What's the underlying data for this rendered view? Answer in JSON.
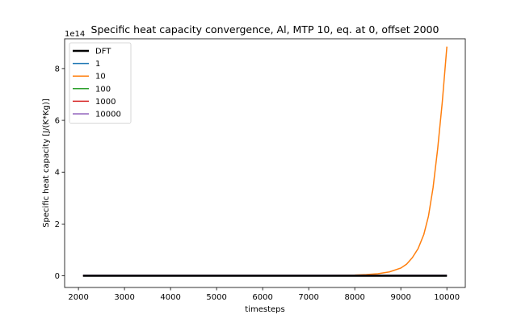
{
  "chart_data": {
    "type": "line",
    "title": "Specific heat capacity convergence, Al, MTP 10, eq. at 0, offset 2000",
    "xlabel": "timesteps",
    "ylabel": "Specific heat capacity [J/(K*Kg)]",
    "y_offset_label": "1e14",
    "xlim": [
      1700,
      10400
    ],
    "ylim": [
      -0.45,
      9.15
    ],
    "x_ticks": [
      2000,
      3000,
      4000,
      5000,
      6000,
      7000,
      8000,
      9000,
      10000
    ],
    "x_tick_labels": [
      "2000",
      "3000",
      "4000",
      "5000",
      "6000",
      "7000",
      "8000",
      "9000",
      "10000"
    ],
    "y_ticks": [
      0,
      2,
      4,
      6,
      8
    ],
    "y_tick_labels": [
      "0",
      "2",
      "4",
      "6",
      "8"
    ],
    "y_unit_scale": "1e14",
    "grid": false,
    "legend_position": "upper-left",
    "series": [
      {
        "name": "DFT",
        "color": "#000000",
        "width": 2.5,
        "x": [
          2100,
          10000
        ],
        "values": [
          0,
          0
        ]
      },
      {
        "name": "1",
        "color": "#1f77b4",
        "width": 1.5,
        "x": [
          2100,
          10000
        ],
        "values": [
          0,
          0
        ]
      },
      {
        "name": "10",
        "color": "#ff7f0e",
        "width": 1.5,
        "x": [
          2100,
          6000,
          7000,
          7500,
          8000,
          8250,
          8500,
          8750,
          9000,
          9125,
          9250,
          9375,
          9500,
          9600,
          9700,
          9800,
          9900,
          10000
        ],
        "values": [
          0,
          0.001,
          0.005,
          0.012,
          0.03,
          0.05,
          0.08,
          0.15,
          0.3,
          0.45,
          0.7,
          1.05,
          1.6,
          2.3,
          3.4,
          4.9,
          6.7,
          8.85
        ]
      },
      {
        "name": "100",
        "color": "#2ca02c",
        "width": 1.5,
        "x": [
          2100,
          10000
        ],
        "values": [
          0,
          0
        ]
      },
      {
        "name": "1000",
        "color": "#d62728",
        "width": 1.5,
        "x": [
          2100,
          10000
        ],
        "values": [
          0,
          0
        ]
      },
      {
        "name": "10000",
        "color": "#9467bd",
        "width": 1.5,
        "x": [
          2100,
          10000
        ],
        "values": [
          0.02,
          0.02
        ]
      }
    ]
  }
}
